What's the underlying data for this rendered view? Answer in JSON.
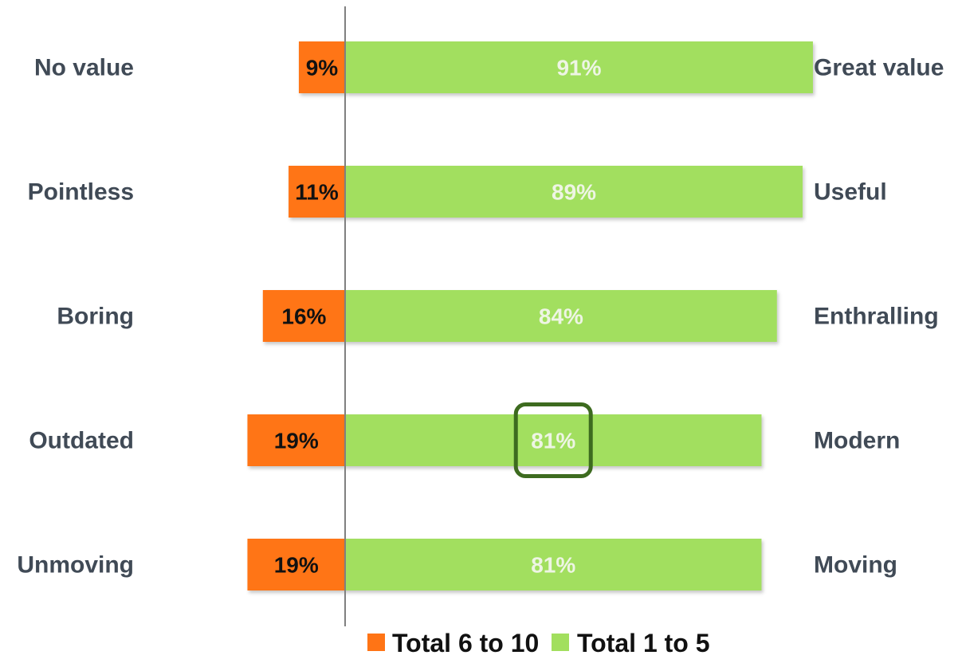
{
  "chart_data": {
    "type": "bar",
    "orientation": "horizontal",
    "stacked": "diverging",
    "rows": [
      {
        "left_label": "No value",
        "right_label": "Great value"
      },
      {
        "left_label": "Pointless",
        "right_label": "Useful"
      },
      {
        "left_label": "Boring",
        "right_label": "Enthralling"
      },
      {
        "left_label": "Outdated",
        "right_label": "Modern"
      },
      {
        "left_label": "Unmoving",
        "right_label": "Moving"
      }
    ],
    "series": [
      {
        "name": "Total 6 to 10",
        "color": "#ff7415",
        "label_color": "#111111",
        "values": [
          9,
          11,
          16,
          19,
          19
        ],
        "labels": [
          "9%",
          "11%",
          "16%",
          "19%",
          "19%"
        ]
      },
      {
        "name": "Total 1 to 5",
        "color": "#a2df5e",
        "label_color": "#eef5e4",
        "values": [
          91,
          89,
          84,
          81,
          81
        ],
        "labels": [
          "91%",
          "89%",
          "84%",
          "81%",
          "81%"
        ]
      }
    ],
    "highlight": {
      "row": 3,
      "series": 1,
      "color": "#3d6b1f"
    },
    "legend": "bottom-center",
    "unit": "%"
  }
}
